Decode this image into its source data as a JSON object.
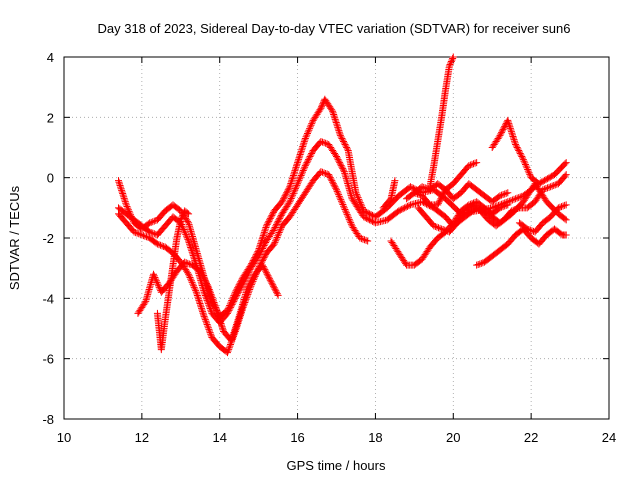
{
  "chart_data": {
    "type": "scatter",
    "title": "Day 318 of 2023, Sidereal Day-to-day VTEC variation (SDTVAR) for receiver sun6",
    "xlabel": "GPS time / hours",
    "ylabel": "SDTVAR / TECUs",
    "xlim": [
      10,
      24
    ],
    "ylim": [
      -8,
      4
    ],
    "xticks": [
      "10",
      "12",
      "14",
      "16",
      "18",
      "20",
      "22",
      "24"
    ],
    "yticks": [
      "-8",
      "-6",
      "-4",
      "-2",
      "0",
      "2",
      "4"
    ],
    "grid": true,
    "marker": "+",
    "color": "#ff0000",
    "series": [
      {
        "name": "trace-1",
        "points": [
          [
            11.4,
            -0.1
          ],
          [
            11.6,
            -0.9
          ],
          [
            11.8,
            -1.5
          ],
          [
            12.0,
            -1.7
          ],
          [
            12.2,
            -1.5
          ],
          [
            12.4,
            -1.4
          ],
          [
            12.6,
            -1.1
          ],
          [
            12.8,
            -0.9
          ],
          [
            13.0,
            -1.1
          ],
          [
            13.2,
            -1.5
          ],
          [
            13.4,
            -2.4
          ],
          [
            13.6,
            -3.3
          ],
          [
            13.8,
            -4.1
          ],
          [
            14.0,
            -4.6
          ],
          [
            14.2,
            -4.4
          ],
          [
            14.4,
            -3.8
          ],
          [
            14.6,
            -3.3
          ],
          [
            14.8,
            -2.9
          ],
          [
            15.0,
            -2.4
          ],
          [
            15.2,
            -1.6
          ],
          [
            15.4,
            -1.1
          ],
          [
            15.6,
            -0.8
          ],
          [
            15.8,
            -0.3
          ],
          [
            16.0,
            0.5
          ],
          [
            16.2,
            1.3
          ],
          [
            16.4,
            1.9
          ],
          [
            16.6,
            2.3
          ],
          [
            16.7,
            2.6
          ],
          [
            16.9,
            2.2
          ],
          [
            17.1,
            1.4
          ],
          [
            17.3,
            0.9
          ],
          [
            17.5,
            -0.5
          ],
          [
            17.7,
            -1.1
          ],
          [
            18.0,
            -1.3
          ],
          [
            18.3,
            -1.0
          ],
          [
            18.6,
            -0.6
          ],
          [
            18.9,
            -0.3
          ],
          [
            19.2,
            -0.5
          ],
          [
            19.5,
            -0.4
          ],
          [
            19.8,
            -0.7
          ],
          [
            20.2,
            -1.2
          ],
          [
            20.6,
            -1.1
          ],
          [
            21.0,
            -1.0
          ],
          [
            21.4,
            -0.8
          ],
          [
            21.8,
            -0.6
          ],
          [
            22.2,
            -0.2
          ],
          [
            22.6,
            0.1
          ],
          [
            22.9,
            0.5
          ]
        ]
      },
      {
        "name": "trace-2",
        "points": [
          [
            11.4,
            -1.0
          ],
          [
            11.6,
            -1.2
          ],
          [
            11.8,
            -1.4
          ],
          [
            12.0,
            -1.6
          ],
          [
            12.2,
            -1.8
          ],
          [
            12.4,
            -1.9
          ],
          [
            12.6,
            -1.6
          ],
          [
            12.8,
            -1.3
          ],
          [
            13.0,
            -1.5
          ],
          [
            13.2,
            -2.1
          ],
          [
            13.4,
            -2.9
          ],
          [
            13.6,
            -3.8
          ],
          [
            13.8,
            -4.5
          ],
          [
            14.0,
            -4.8
          ],
          [
            14.2,
            -4.5
          ],
          [
            14.4,
            -4.0
          ],
          [
            14.6,
            -3.5
          ],
          [
            14.8,
            -3.0
          ],
          [
            15.0,
            -2.6
          ],
          [
            15.2,
            -2.1
          ],
          [
            15.4,
            -1.7
          ],
          [
            15.6,
            -1.2
          ],
          [
            15.8,
            -0.8
          ],
          [
            16.0,
            -0.2
          ],
          [
            16.2,
            0.4
          ],
          [
            16.4,
            0.9
          ],
          [
            16.6,
            1.2
          ],
          [
            16.8,
            1.1
          ],
          [
            17.0,
            0.7
          ],
          [
            17.2,
            0.2
          ],
          [
            17.4,
            -0.7
          ],
          [
            17.7,
            -1.3
          ],
          [
            18.0,
            -1.5
          ],
          [
            18.3,
            -1.4
          ],
          [
            18.6,
            -1.1
          ],
          [
            18.9,
            -0.9
          ],
          [
            19.2,
            -0.8
          ],
          [
            19.5,
            -1.0
          ],
          [
            19.8,
            -1.3
          ],
          [
            20.0,
            -1.6
          ],
          [
            20.3,
            -1.3
          ],
          [
            20.6,
            -1.0
          ],
          [
            20.9,
            -1.2
          ],
          [
            21.2,
            -1.5
          ],
          [
            21.5,
            -1.2
          ],
          [
            21.8,
            -0.8
          ],
          [
            22.1,
            -0.2
          ],
          [
            22.4,
            -0.8
          ],
          [
            22.7,
            -1.2
          ],
          [
            22.9,
            -1.4
          ]
        ]
      },
      {
        "name": "trace-3",
        "points": [
          [
            11.4,
            -1.2
          ],
          [
            11.6,
            -1.5
          ],
          [
            11.8,
            -1.8
          ],
          [
            12.0,
            -1.9
          ],
          [
            12.2,
            -2.0
          ],
          [
            12.4,
            -2.2
          ],
          [
            12.6,
            -2.3
          ],
          [
            12.8,
            -2.5
          ],
          [
            13.0,
            -2.8
          ],
          [
            13.2,
            -3.2
          ],
          [
            13.4,
            -3.8
          ],
          [
            13.6,
            -4.6
          ],
          [
            13.8,
            -5.3
          ],
          [
            14.0,
            -5.6
          ],
          [
            14.2,
            -5.8
          ],
          [
            14.4,
            -5.1
          ],
          [
            14.6,
            -4.3
          ],
          [
            14.8,
            -3.6
          ],
          [
            15.0,
            -3.0
          ],
          [
            15.2,
            -2.5
          ],
          [
            15.4,
            -2.2
          ],
          [
            15.6,
            -1.6
          ],
          [
            15.8,
            -1.3
          ],
          [
            16.0,
            -0.9
          ],
          [
            16.2,
            -0.5
          ],
          [
            16.4,
            -0.1
          ],
          [
            16.6,
            0.2
          ],
          [
            16.8,
            0.1
          ],
          [
            17.0,
            -0.4
          ],
          [
            17.2,
            -1.0
          ],
          [
            17.4,
            -1.6
          ],
          [
            17.6,
            -2.0
          ],
          [
            17.8,
            -2.1
          ]
        ]
      },
      {
        "name": "trace-4",
        "points": [
          [
            11.9,
            -4.5
          ],
          [
            12.1,
            -4.1
          ],
          [
            12.3,
            -3.2
          ],
          [
            12.5,
            -3.8
          ],
          [
            12.7,
            -3.5
          ],
          [
            12.9,
            -3.1
          ],
          [
            13.1,
            -2.8
          ],
          [
            13.3,
            -2.9
          ],
          [
            13.5,
            -3.1
          ],
          [
            13.7,
            -3.6
          ],
          [
            13.9,
            -4.3
          ],
          [
            14.1,
            -5.1
          ],
          [
            14.3,
            -5.4
          ],
          [
            14.5,
            -4.6
          ],
          [
            14.7,
            -3.7
          ],
          [
            14.9,
            -3.2
          ],
          [
            15.1,
            -2.9
          ],
          [
            15.3,
            -3.4
          ],
          [
            15.5,
            -3.9
          ]
        ]
      },
      {
        "name": "trace-5",
        "points": [
          [
            12.4,
            -4.5
          ],
          [
            12.5,
            -5.7
          ],
          [
            12.6,
            -4.7
          ],
          [
            12.7,
            -3.8
          ],
          [
            12.8,
            -2.9
          ],
          [
            12.9,
            -2.0
          ],
          [
            13.0,
            -1.4
          ],
          [
            13.1,
            -1.1
          ],
          [
            13.2,
            -1.2
          ]
        ]
      },
      {
        "name": "trace-6",
        "points": [
          [
            18.4,
            -2.1
          ],
          [
            18.6,
            -2.5
          ],
          [
            18.8,
            -2.9
          ],
          [
            19.0,
            -2.9
          ],
          [
            19.2,
            -2.7
          ],
          [
            19.4,
            -2.3
          ],
          [
            19.6,
            -2.0
          ],
          [
            19.8,
            -1.8
          ],
          [
            20.0,
            -1.5
          ],
          [
            20.2,
            -1.1
          ],
          [
            20.4,
            -0.9
          ],
          [
            20.6,
            -0.8
          ],
          [
            20.8,
            -1.0
          ],
          [
            21.0,
            -1.2
          ],
          [
            21.2,
            -1.0
          ],
          [
            21.4,
            -0.9
          ]
        ]
      },
      {
        "name": "trace-7",
        "points": [
          [
            18.8,
            -0.7
          ],
          [
            19.0,
            -0.5
          ],
          [
            19.2,
            -0.3
          ],
          [
            19.4,
            -0.4
          ],
          [
            19.6,
            -0.2
          ],
          [
            19.8,
            -0.4
          ],
          [
            20.0,
            -0.7
          ],
          [
            20.2,
            -0.5
          ],
          [
            20.4,
            -0.2
          ],
          [
            20.6,
            -0.4
          ],
          [
            20.8,
            -0.6
          ],
          [
            21.0,
            -0.8
          ],
          [
            21.2,
            -0.6
          ],
          [
            21.4,
            -0.5
          ]
        ]
      },
      {
        "name": "trace-8",
        "points": [
          [
            18.2,
            -1.0
          ],
          [
            18.4,
            -0.7
          ],
          [
            18.5,
            -0.1
          ]
        ]
      },
      {
        "name": "trace-9",
        "points": [
          [
            19.0,
            -0.5
          ],
          [
            19.2,
            -0.6
          ],
          [
            19.4,
            -0.9
          ],
          [
            19.6,
            -0.9
          ],
          [
            19.8,
            -0.4
          ],
          [
            20.0,
            -0.2
          ],
          [
            20.2,
            0.1
          ],
          [
            20.4,
            0.4
          ],
          [
            20.6,
            0.5
          ]
        ]
      },
      {
        "name": "trace-10",
        "points": [
          [
            19.1,
            -1.0
          ],
          [
            19.3,
            -1.3
          ],
          [
            19.5,
            -1.6
          ],
          [
            19.7,
            -1.7
          ],
          [
            19.9,
            -1.8
          ],
          [
            20.1,
            -1.5
          ],
          [
            20.3,
            -1.1
          ],
          [
            20.5,
            -0.9
          ],
          [
            20.7,
            -1.1
          ],
          [
            20.9,
            -1.4
          ],
          [
            21.1,
            -1.6
          ],
          [
            21.3,
            -1.4
          ],
          [
            21.5,
            -1.1
          ],
          [
            21.7,
            -1.0
          ],
          [
            21.9,
            -1.0
          ],
          [
            22.1,
            -0.8
          ],
          [
            22.3,
            -0.4
          ],
          [
            22.5,
            -0.3
          ],
          [
            22.7,
            -0.2
          ],
          [
            22.9,
            0.1
          ]
        ]
      },
      {
        "name": "trace-11",
        "points": [
          [
            19.4,
            -0.3
          ],
          [
            19.5,
            0.4
          ],
          [
            19.6,
            1.2
          ],
          [
            19.7,
            2.0
          ],
          [
            19.8,
            2.9
          ],
          [
            19.9,
            3.7
          ],
          [
            20.0,
            4.0
          ]
        ]
      },
      {
        "name": "trace-12",
        "points": [
          [
            20.6,
            -2.9
          ],
          [
            20.8,
            -2.8
          ],
          [
            21.0,
            -2.6
          ],
          [
            21.2,
            -2.4
          ],
          [
            21.4,
            -2.2
          ],
          [
            21.6,
            -1.9
          ],
          [
            21.8,
            -1.7
          ],
          [
            22.0,
            -2.0
          ],
          [
            22.2,
            -2.2
          ],
          [
            22.4,
            -1.9
          ],
          [
            22.6,
            -1.7
          ],
          [
            22.8,
            -1.9
          ],
          [
            22.9,
            -1.9
          ]
        ]
      },
      {
        "name": "trace-13",
        "points": [
          [
            21.0,
            1.0
          ],
          [
            21.2,
            1.4
          ],
          [
            21.4,
            1.9
          ],
          [
            21.6,
            1.1
          ],
          [
            21.8,
            0.6
          ],
          [
            22.0,
            0.0
          ],
          [
            22.2,
            -0.2
          ]
        ]
      },
      {
        "name": "trace-14",
        "points": [
          [
            21.7,
            -1.5
          ],
          [
            21.9,
            -1.7
          ],
          [
            22.1,
            -1.8
          ],
          [
            22.3,
            -1.5
          ],
          [
            22.5,
            -1.3
          ],
          [
            22.7,
            -1.0
          ],
          [
            22.9,
            -0.9
          ]
        ]
      }
    ]
  }
}
